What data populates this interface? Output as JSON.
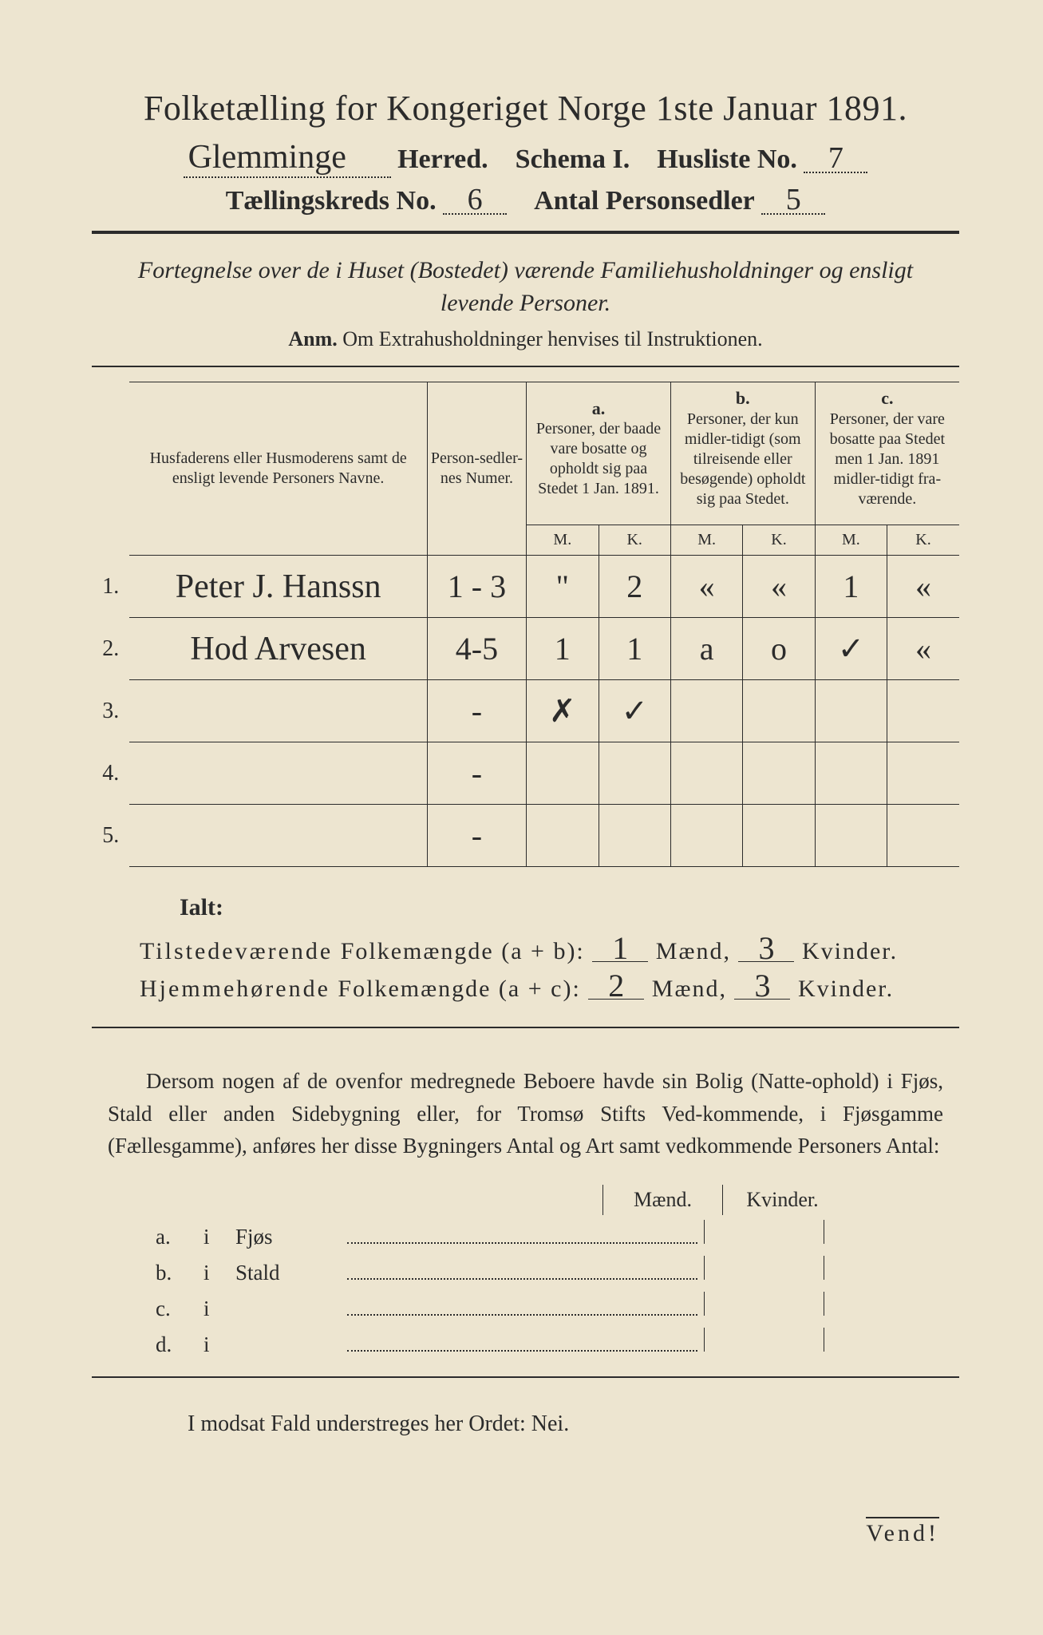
{
  "header": {
    "title": "Folketælling for Kongeriget Norge 1ste Januar 1891.",
    "herred_value": "Glemminge",
    "herred_label": "Herred.",
    "schema_label": "Schema I.",
    "husliste_label": "Husliste No.",
    "husliste_value": "7",
    "kreds_label": "Tællingskreds No.",
    "kreds_value": "6",
    "antal_label": "Antal Personsedler",
    "antal_value": "5"
  },
  "subtitle": "Fortegnelse over de i Huset (Bostedet) værende Familiehusholdninger og ensligt levende Personer.",
  "anm_label": "Anm.",
  "anm_text": "Om Extrahusholdninger henvises til Instruktionen.",
  "table": {
    "head_names": "Husfaderens eller Husmoderens samt de ensligt levende Personers Navne.",
    "head_numer": "Person-sedler-nes Numer.",
    "col_a_letter": "a.",
    "col_a": "Personer, der baade vare bosatte og opholdt sig paa Stedet 1 Jan. 1891.",
    "col_b_letter": "b.",
    "col_b": "Personer, der kun midler-tidigt (som tilreisende eller besøgende) opholdt sig paa Stedet.",
    "col_c_letter": "c.",
    "col_c": "Personer, der vare bosatte paa Stedet men 1 Jan. 1891 midler-tidigt fra-værende.",
    "M": "M.",
    "K": "K.",
    "rows": [
      {
        "n": "1.",
        "name": "Peter J. Hanssn",
        "num": "1 - 3",
        "aM": "\"",
        "aK": "2",
        "bM": "«",
        "bK": "«",
        "cM": "1",
        "cK": "«"
      },
      {
        "n": "2.",
        "name": "Hod Arvesen",
        "num": "4-5",
        "aM": "1",
        "aK": "1",
        "bM": "a",
        "bK": "o",
        "cM": "✓",
        "cK": "«"
      },
      {
        "n": "3.",
        "name": "",
        "num": "-",
        "aM": "✗",
        "aK": "✓",
        "bM": "",
        "bK": "",
        "cM": "",
        "cK": ""
      },
      {
        "n": "4.",
        "name": "",
        "num": "-",
        "aM": "",
        "aK": "",
        "bM": "",
        "bK": "",
        "cM": "",
        "cK": ""
      },
      {
        "n": "5.",
        "name": "",
        "num": "-",
        "aM": "",
        "aK": "",
        "bM": "",
        "bK": "",
        "cM": "",
        "cK": ""
      }
    ]
  },
  "ialt": "Ialt:",
  "totals": {
    "line1_label_a": "Tilstedeværende",
    "line1_label_b": "Folkemængde (a + b):",
    "line1_m": "1",
    "line1_k": "3",
    "line2_label_a": "Hjemmehørende",
    "line2_label_b": "Folkemængde (a + c):",
    "line2_m": "2",
    "line2_k": "3",
    "maend": "Mænd,",
    "kvinder": "Kvinder."
  },
  "paragraph": "Dersom nogen af de ovenfor medregnede Beboere havde sin Bolig (Natte-ophold) i Fjøs, Stald eller anden Sidebygning eller, for Tromsø Stifts Ved-kommende, i Fjøsgamme (Fællesgamme), anføres her disse Bygningers Antal og Art samt vedkommende Personers Antal:",
  "mk_labels": {
    "m": "Mænd.",
    "k": "Kvinder."
  },
  "dwellings": [
    {
      "lbl": "a.",
      "type": "Fjøs"
    },
    {
      "lbl": "b.",
      "type": "Stald"
    },
    {
      "lbl": "c.",
      "type": ""
    },
    {
      "lbl": "d.",
      "type": ""
    }
  ],
  "nei": "I modsat Fald understreges her Ordet: Nei.",
  "vend": "Vend!",
  "colors": {
    "paper": "#ede5d0",
    "ink": "#2b2b2b",
    "outer": "#2a2a2a"
  },
  "typography": {
    "title_pt": 44,
    "body_pt": 27,
    "handwriting_font": "Brush Script MT"
  }
}
